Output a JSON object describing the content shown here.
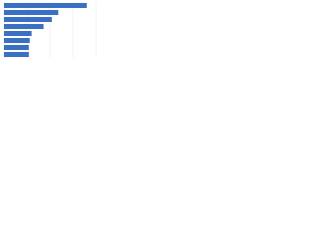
{
  "chart_data": {
    "type": "bar",
    "orientation": "horizontal",
    "categories": [
      null,
      null,
      null,
      null,
      null,
      null,
      null,
      null
    ],
    "values": [
      90,
      59,
      52,
      43,
      30,
      28,
      27,
      27
    ],
    "color": "#3a6fc4",
    "xlim": [
      0,
      100
    ],
    "xticks": [
      0,
      25,
      50,
      75,
      100
    ],
    "grid": true
  }
}
